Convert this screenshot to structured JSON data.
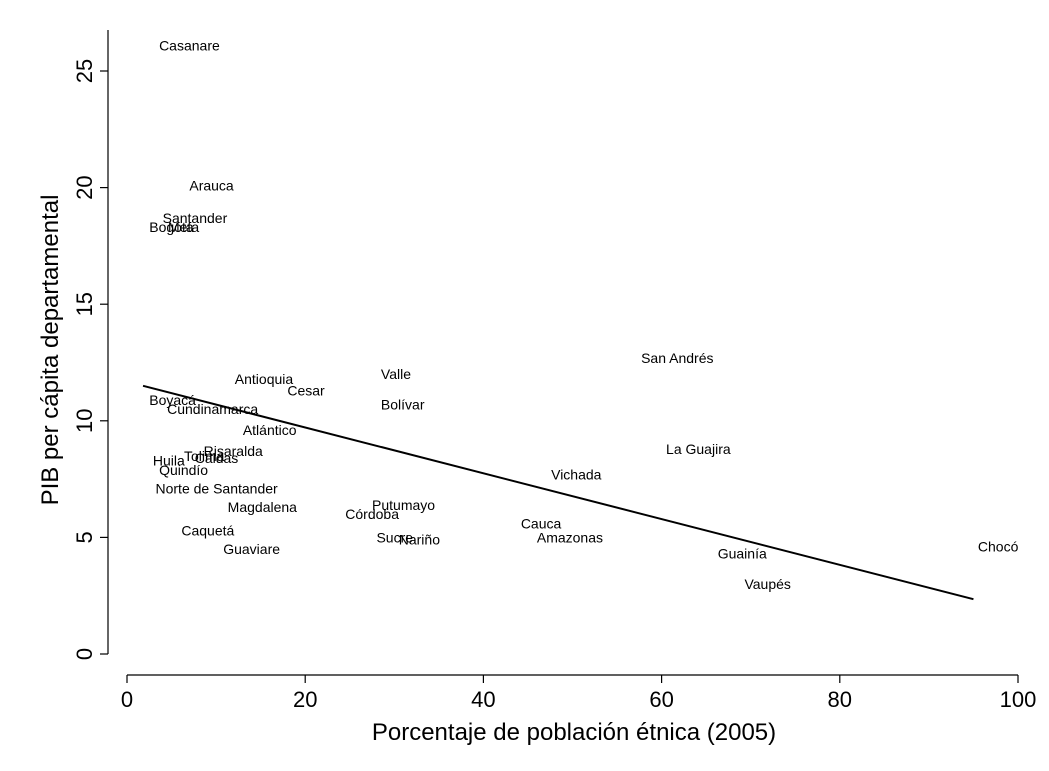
{
  "chart_data": {
    "type": "scatter",
    "xlabel": "Porcentaje de población étnica (2005)",
    "ylabel": "PIB per cápita departamental",
    "xlim": [
      0,
      100
    ],
    "ylim": [
      0,
      25
    ],
    "x_ticks": [
      0,
      20,
      40,
      60,
      80,
      100
    ],
    "y_ticks": [
      0,
      5,
      10,
      15,
      20,
      25
    ],
    "grid": false,
    "marker": "label",
    "points": [
      {
        "label": "Casanare",
        "x": 3.6,
        "y": 26.1
      },
      {
        "label": "Arauca",
        "x": 7.0,
        "y": 20.1
      },
      {
        "label": "Santander",
        "x": 4.0,
        "y": 18.7
      },
      {
        "label": "Bogotá",
        "x": 2.5,
        "y": 18.3
      },
      {
        "label": "Meta",
        "x": 4.6,
        "y": 18.3
      },
      {
        "label": "San Andrés",
        "x": 57.7,
        "y": 12.7
      },
      {
        "label": "Valle",
        "x": 28.5,
        "y": 12.0
      },
      {
        "label": "Antioquia",
        "x": 12.1,
        "y": 11.8
      },
      {
        "label": "Cesar",
        "x": 18.0,
        "y": 11.3
      },
      {
        "label": "Bolívar",
        "x": 28.5,
        "y": 10.7
      },
      {
        "label": "Boyacá",
        "x": 2.5,
        "y": 10.9
      },
      {
        "label": "Cundinamarca",
        "x": 4.5,
        "y": 10.5
      },
      {
        "label": "Atlántico",
        "x": 13.0,
        "y": 9.6
      },
      {
        "label": "La Guajira",
        "x": 60.5,
        "y": 8.8
      },
      {
        "label": "Risaralda",
        "x": 8.6,
        "y": 8.7
      },
      {
        "label": "Tolima",
        "x": 6.4,
        "y": 8.5
      },
      {
        "label": "Caldas",
        "x": 7.6,
        "y": 8.4
      },
      {
        "label": "Huila",
        "x": 2.9,
        "y": 8.3
      },
      {
        "label": "Quindío",
        "x": 3.6,
        "y": 7.9
      },
      {
        "label": "Vichada",
        "x": 47.6,
        "y": 7.7
      },
      {
        "label": "Norte de Santander",
        "x": 3.2,
        "y": 7.1
      },
      {
        "label": "Putumayo",
        "x": 27.5,
        "y": 6.4
      },
      {
        "label": "Magdalena",
        "x": 11.3,
        "y": 6.3
      },
      {
        "label": "Córdoba",
        "x": 24.5,
        "y": 6.0
      },
      {
        "label": "Cauca",
        "x": 44.2,
        "y": 5.6
      },
      {
        "label": "Caquetá",
        "x": 6.1,
        "y": 5.3
      },
      {
        "label": "Sucre",
        "x": 28.0,
        "y": 5.0
      },
      {
        "label": "Nariño",
        "x": 30.5,
        "y": 4.9
      },
      {
        "label": "Amazonas",
        "x": 46.0,
        "y": 5.0
      },
      {
        "label": "Guaviare",
        "x": 10.8,
        "y": 4.5
      },
      {
        "label": "Chocó",
        "x": 95.5,
        "y": 4.6
      },
      {
        "label": "Guainía",
        "x": 66.3,
        "y": 4.3
      },
      {
        "label": "Vaupés",
        "x": 69.3,
        "y": 3.0
      }
    ],
    "fit_line": {
      "x": [
        1.8,
        95.0
      ],
      "y": [
        11.5,
        2.35
      ]
    }
  }
}
